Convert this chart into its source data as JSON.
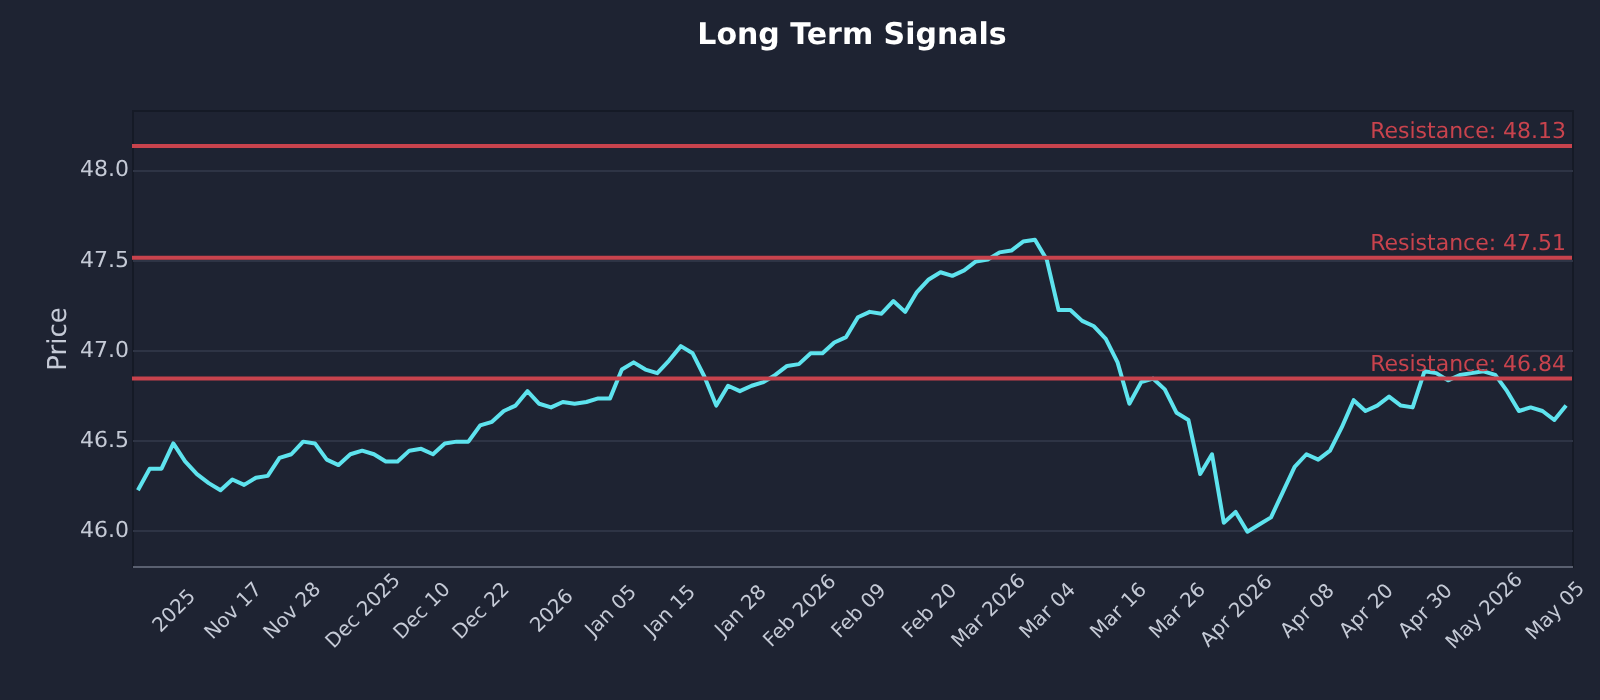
{
  "chart_data": {
    "type": "line",
    "title": "Long Term Signals",
    "ylabel": "Price",
    "categories": [
      null,
      null,
      null,
      "2025",
      null,
      null,
      null,
      null,
      "Nov 17",
      null,
      null,
      null,
      null,
      "Nov 28",
      null,
      null,
      null,
      null,
      null,
      "Dec 2025",
      null,
      null,
      null,
      null,
      "Dec 10",
      null,
      null,
      null,
      null,
      "Dec 22",
      null,
      null,
      null,
      null,
      null,
      "2026",
      null,
      null,
      null,
      null,
      "Jan 05",
      null,
      null,
      null,
      null,
      "Jan 15",
      null,
      null,
      null,
      null,
      null,
      "Jan 28",
      null,
      null,
      null,
      null,
      "Feb 2026",
      null,
      null,
      null,
      null,
      "Feb 09",
      null,
      null,
      null,
      null,
      null,
      "Feb 20",
      null,
      null,
      null,
      null,
      "Mar 2026",
      null,
      null,
      null,
      null,
      "Mar 04",
      null,
      null,
      null,
      null,
      null,
      "Mar 16",
      null,
      null,
      null,
      null,
      "Mar 26",
      null,
      null,
      null,
      null,
      "Apr 2026",
      null,
      null,
      null,
      null,
      null,
      "Apr 08",
      null,
      null,
      null,
      null,
      "Apr 20",
      null,
      null,
      null,
      null,
      "Apr 30",
      null,
      null,
      null,
      null,
      "May 2026",
      null,
      null,
      null,
      null,
      null,
      "May 05",
      null
    ],
    "series": [
      {
        "color": "#5ee3ee",
        "values": [
          46.22,
          46.34,
          46.34,
          46.48,
          46.38,
          46.31,
          46.26,
          46.22,
          46.28,
          46.25,
          46.29,
          46.3,
          46.4,
          46.42,
          46.49,
          46.48,
          46.39,
          46.36,
          46.42,
          46.44,
          46.42,
          46.38,
          46.38,
          46.44,
          46.45,
          46.42,
          46.48,
          46.49,
          46.49,
          46.58,
          46.6,
          46.66,
          46.69,
          46.77,
          46.7,
          46.68,
          46.71,
          46.7,
          46.71,
          46.73,
          46.73,
          46.89,
          46.93,
          46.89,
          46.87,
          46.94,
          47.02,
          46.98,
          46.85,
          46.69,
          46.8,
          46.77,
          46.8,
          46.82,
          46.86,
          46.91,
          46.92,
          46.98,
          46.98,
          47.04,
          47.07,
          47.18,
          47.21,
          47.2,
          47.27,
          47.21,
          47.32,
          47.39,
          47.43,
          47.41,
          47.44,
          47.49,
          47.5,
          47.54,
          47.55,
          47.6,
          47.61,
          47.5,
          47.22,
          47.22,
          47.16,
          47.13,
          47.06,
          46.93,
          46.7,
          46.82,
          46.84,
          46.78,
          46.65,
          46.61,
          46.31,
          46.42,
          46.04,
          46.1,
          45.99,
          46.03,
          46.07,
          46.21,
          46.35,
          46.42,
          46.39,
          46.44,
          46.57,
          46.72,
          46.66,
          46.69,
          46.74,
          46.69,
          46.68,
          46.88,
          46.87,
          46.83,
          46.86,
          46.87,
          46.88,
          46.86,
          46.77,
          46.66,
          46.68,
          46.66,
          46.61,
          46.69
        ]
      }
    ],
    "ylim": [
      45.8,
      48.33
    ],
    "yticks": [
      {
        "value": 46,
        "label": "46.0"
      },
      46.5,
      {
        "value": 47,
        "label": "47.0"
      },
      47.5,
      {
        "value": 48,
        "label": "48.0"
      }
    ],
    "grid": "y",
    "ref_lines": [
      {
        "axis": "y",
        "value": 48.13,
        "label": "Resistance: 48.13",
        "color": "#c8434d"
      },
      {
        "axis": "y",
        "value": 47.51,
        "label": "Resistance: 47.51",
        "color": "#c8434d"
      },
      {
        "axis": "y",
        "value": 46.84,
        "label": "Resistance: 46.84",
        "color": "#c8434d"
      }
    ]
  }
}
